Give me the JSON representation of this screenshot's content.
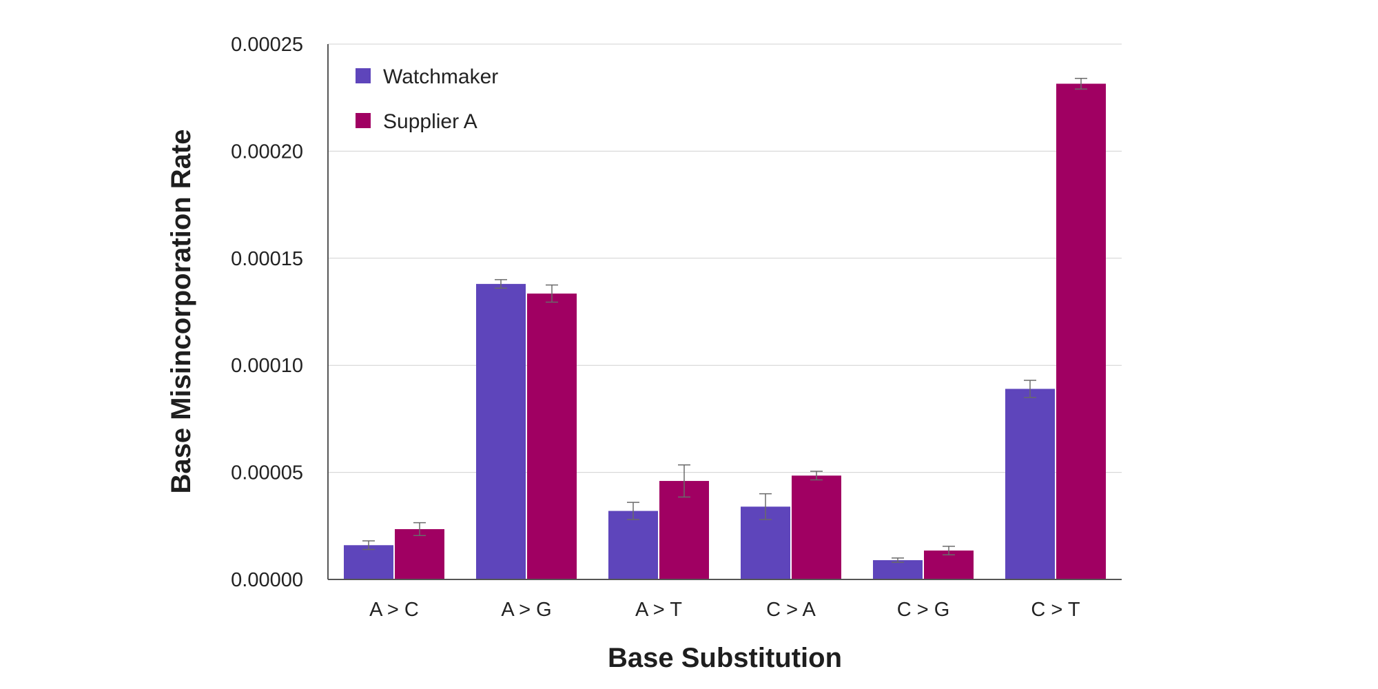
{
  "chart_data": {
    "type": "bar",
    "title": "",
    "xlabel": "Base Substitution",
    "ylabel": "Base Misincorporation Rate",
    "categories": [
      "A > C",
      "A > G",
      "A > T",
      "C > A",
      "C > G",
      "C > T"
    ],
    "series": [
      {
        "name": "Watchmaker",
        "color": "#5e45bb",
        "values": [
          1.6e-05,
          0.000138,
          3.2e-05,
          3.4e-05,
          9e-06,
          8.9e-05
        ],
        "errors": [
          2e-06,
          2e-06,
          4e-06,
          6e-06,
          1e-06,
          4e-06
        ]
      },
      {
        "name": "Supplier A",
        "color": "#a00062",
        "values": [
          2.35e-05,
          0.0001335,
          4.6e-05,
          4.85e-05,
          1.35e-05,
          0.0002315
        ],
        "errors": [
          3e-06,
          4e-06,
          7.5e-06,
          2e-06,
          2e-06,
          2.5e-06
        ]
      }
    ],
    "ylim": [
      0,
      0.00025
    ],
    "yticks": [
      "0.00000",
      "0.00005",
      "0.00010",
      "0.00015",
      "0.00020",
      "0.00025"
    ],
    "grid": true,
    "legend_position": "top-left"
  }
}
